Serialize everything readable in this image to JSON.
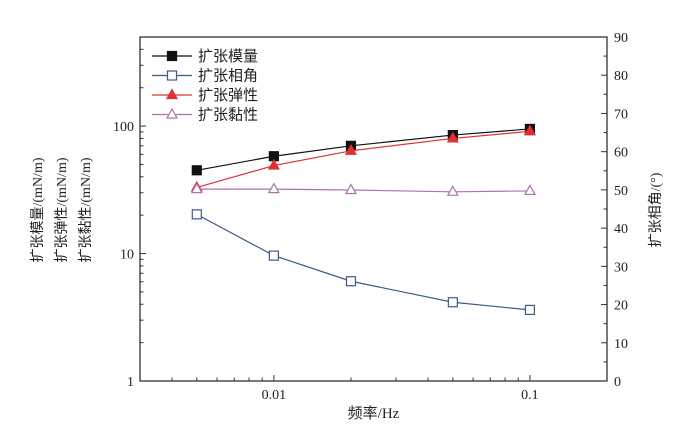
{
  "chart_data": {
    "type": "line",
    "xlabel": "频率/Hz",
    "ylabel_left": [
      "扩张模量/(mN/m)",
      "扩张弹性/(mN/m)",
      "扩张黏性/(mN/m)"
    ],
    "ylabel_right": "扩张相角/(°)",
    "x_scale": "log",
    "y_left_scale": "log",
    "xlim": [
      0.003,
      0.2
    ],
    "ylim_left": [
      1,
      500
    ],
    "ylim_right": [
      0,
      90
    ],
    "x_ticks": [
      "0.01",
      "0.1"
    ],
    "y_left_ticks": [
      "1",
      "10",
      "100"
    ],
    "y_right_ticks": [
      "0",
      "10",
      "20",
      "30",
      "40",
      "50",
      "60",
      "70",
      "80",
      "90"
    ],
    "legend_position": "top-left",
    "grid": false,
    "x": [
      0.005,
      0.01,
      0.02,
      0.05,
      0.1
    ],
    "series": [
      {
        "name": "扩张模量",
        "axis": "left",
        "values": [
          45,
          58,
          70,
          85,
          95
        ],
        "color": "#111111",
        "marker": "filled-square"
      },
      {
        "name": "扩张相角",
        "axis": "right",
        "values": [
          43.6,
          32.8,
          26.1,
          20.6,
          18.6
        ],
        "color": "#3b5a8a",
        "marker": "open-square"
      },
      {
        "name": "扩张弹性",
        "axis": "left",
        "values": [
          33,
          49,
          64,
          80,
          91
        ],
        "color": "#e03030",
        "marker": "filled-triangle"
      },
      {
        "name": "扩张黏性",
        "axis": "left",
        "values": [
          32,
          32,
          31.5,
          30.5,
          31
        ],
        "color": "#b070b0",
        "marker": "open-triangle"
      }
    ]
  }
}
